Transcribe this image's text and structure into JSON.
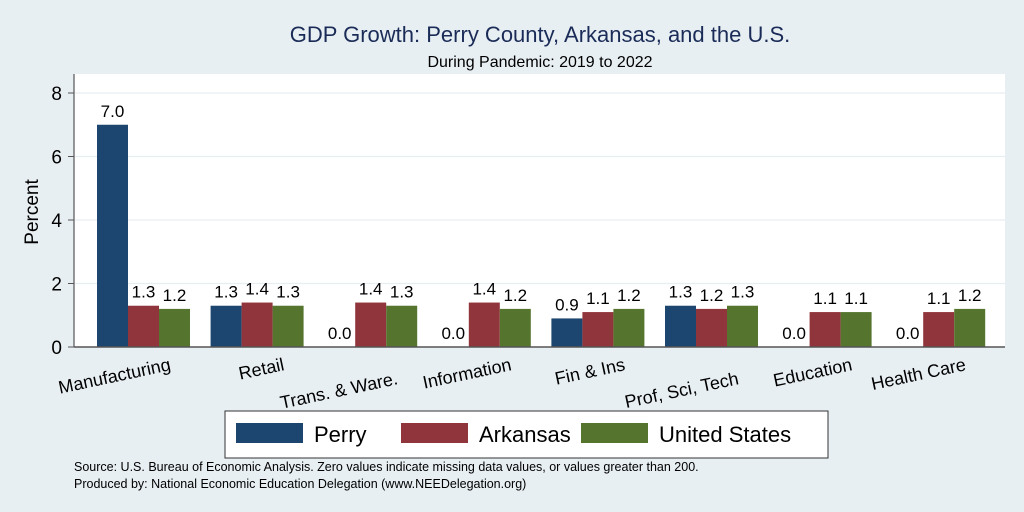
{
  "chart_data": {
    "type": "bar",
    "title": "GDP Growth: Perry County, Arkansas, and the U.S.",
    "subtitle": "During Pandemic: 2019 to 2022",
    "xlabel": "",
    "ylabel": "Percent",
    "ylim": [
      0,
      8.6
    ],
    "yticks": [
      0,
      2,
      4,
      6,
      8
    ],
    "grid": true,
    "legend_position": "bottom",
    "categories": [
      "Manufacturing",
      "Retail",
      "Trans. & Ware.",
      "Information",
      "Fin & Ins",
      "Prof, Sci, Tech",
      "Education",
      "Health Care"
    ],
    "series": [
      {
        "name": "Perry",
        "color": "#1c466f",
        "values": [
          7.0,
          1.3,
          0.0,
          0.0,
          0.9,
          1.3,
          0.0,
          0.0
        ]
      },
      {
        "name": "Arkansas",
        "color": "#90353b",
        "values": [
          1.3,
          1.4,
          1.4,
          1.4,
          1.1,
          1.2,
          1.1,
          1.1
        ]
      },
      {
        "name": "United States",
        "color": "#55752f",
        "values": [
          1.2,
          1.3,
          1.3,
          1.2,
          1.2,
          1.3,
          1.1,
          1.2
        ]
      }
    ],
    "notes": [
      "Source: U.S. Bureau of Economic Analysis. Zero values indicate missing data values, or values greater than 200.",
      "Produced by: National Economic Education Delegation (www.NEEDelegation.org)"
    ]
  }
}
